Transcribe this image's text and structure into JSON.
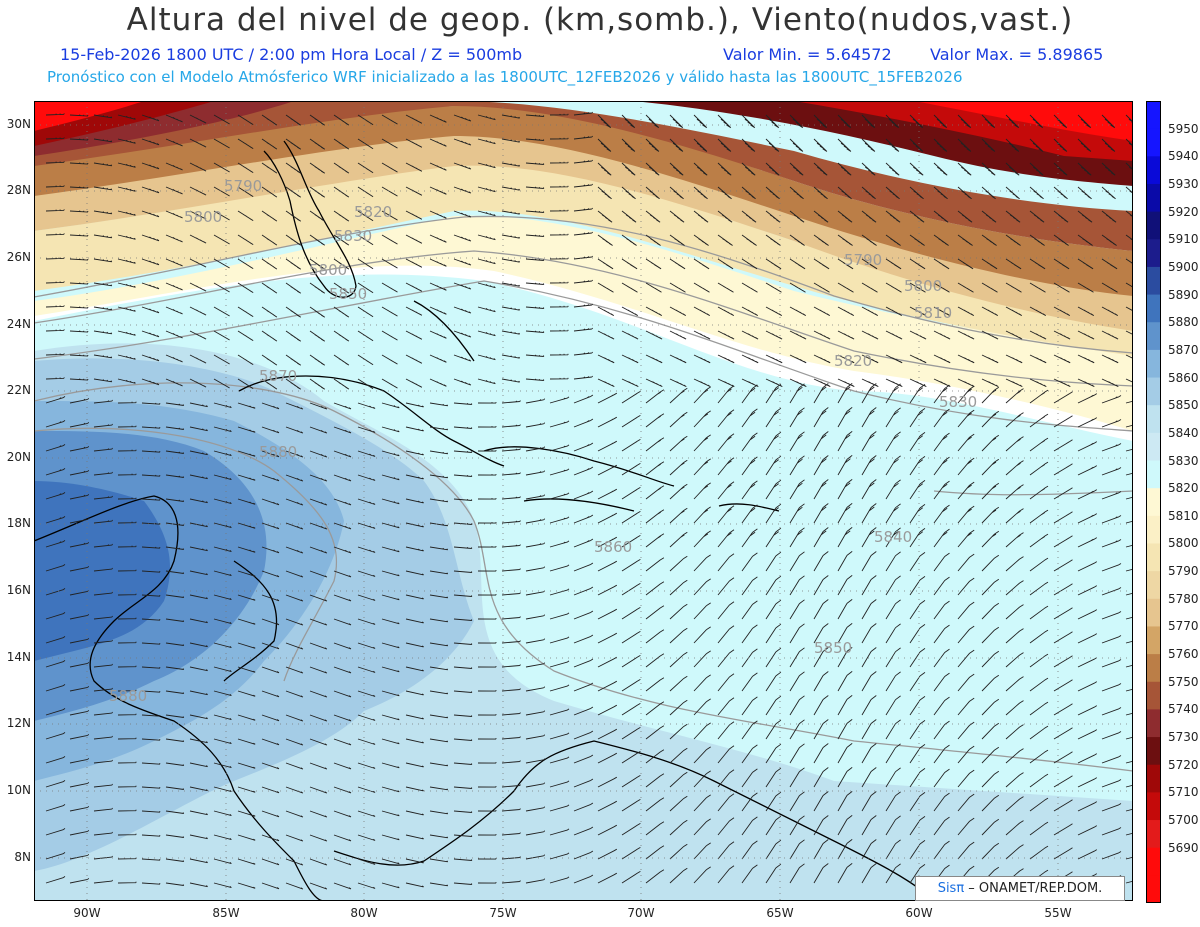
{
  "header": {
    "title": "Altura del nivel de geop. (km,somb.), Viento(nudos,vast.)",
    "subtitle_date": "15-Feb-2026  1800 UTC / 2:00 pm Hora Local / Z = 500mb",
    "valor_min": "Valor Min. = 5.64572",
    "valor_max": "Valor Max. = 5.89865",
    "subtitle_model": "Pronóstico con el Modelo Atmósferico WRF inicializado a las 1800UTC_12FEB2026 y válido hasta las  1800UTC_15FEB2026"
  },
  "axes": {
    "lat_labels": [
      "30N",
      "28N",
      "26N",
      "24N",
      "22N",
      "20N",
      "18N",
      "16N",
      "14N",
      "12N",
      "10N",
      "8N"
    ],
    "lon_labels": [
      "90W",
      "85W",
      "80W",
      "75W",
      "70W",
      "65W",
      "60W",
      "55W"
    ]
  },
  "colorbar": {
    "levels": [
      "5950",
      "5940",
      "5930",
      "5920",
      "5910",
      "5900",
      "5890",
      "5880",
      "5870",
      "5860",
      "5850",
      "5840",
      "5830",
      "5820",
      "5810",
      "5800",
      "5790",
      "5780",
      "5770",
      "5760",
      "5750",
      "5740",
      "5730",
      "5720",
      "5710",
      "5700",
      "5690"
    ],
    "colors": [
      "#1515ff",
      "#0a0ad8",
      "#0a0aa8",
      "#101078",
      "#1c1c8c",
      "#2b4ca0",
      "#3f74bd",
      "#5f93cc",
      "#86b6dd",
      "#a4cce6",
      "#bfe2ef",
      "#cde9f3",
      "#cff9fb",
      "#fef8d4",
      "#fbf0c6",
      "#f5e5b3",
      "#eed7a4",
      "#e6c58f",
      "#d3a566",
      "#bb7e47",
      "#a65537",
      "#8e2c2f",
      "#6c0f10",
      "#9f0808",
      "#c40a0a",
      "#e31b1b",
      "#ff0b0b"
    ]
  },
  "contour_labels": [
    "5790",
    "5800",
    "5820",
    "5830",
    "5800",
    "5850",
    "5870",
    "5880",
    "5880",
    "5790",
    "5800",
    "5810",
    "5820",
    "5830",
    "5860",
    "5840",
    "5850"
  ],
  "credit": {
    "sis": "Sisπ",
    "rest": " – ONAMET/REP.DOM."
  }
}
